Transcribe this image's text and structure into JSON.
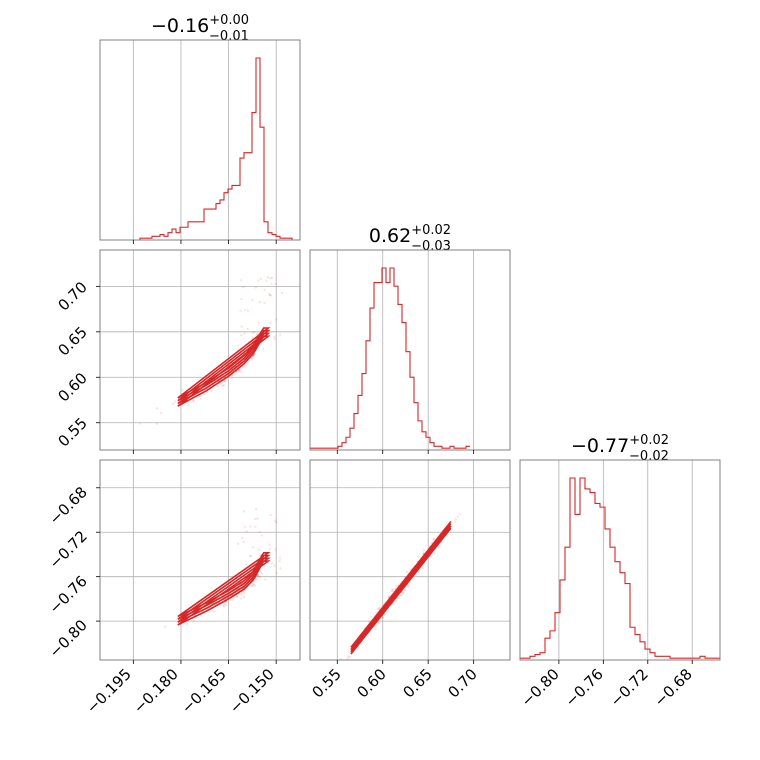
{
  "chart_data": {
    "type": "corner",
    "color": "#d62728",
    "parameters": [
      {
        "title": {
          "median": "−0.16",
          "plus": "+0.00",
          "minus": "−0.01"
        },
        "range": [
          -0.2055,
          -0.1425
        ],
        "ticks": [
          -0.195,
          -0.18,
          -0.165,
          -0.15
        ],
        "tick_labels": [
          "−0.195",
          "−0.180",
          "−0.165",
          "−0.150"
        ]
      },
      {
        "title": {
          "median": "0.62",
          "plus": "+0.02",
          "minus": "−0.03"
        },
        "range": [
          0.52,
          0.74
        ],
        "ticks": [
          0.55,
          0.6,
          0.65,
          0.7
        ],
        "tick_labels": [
          "0.55",
          "0.60",
          "0.65",
          "0.70"
        ]
      },
      {
        "title": {
          "median": "−0.77",
          "plus": "+0.02",
          "minus": "−0.02"
        },
        "range": [
          -0.835,
          -0.655
        ],
        "ticks": [
          -0.8,
          -0.76,
          -0.72,
          -0.68
        ],
        "tick_labels": [
          "−0.80",
          "−0.76",
          "−0.72",
          "−0.68"
        ]
      }
    ],
    "histograms": [
      {
        "param": 0,
        "bin_start": -0.2055,
        "bin_width": 0.00126,
        "counts": [
          0,
          0,
          0,
          0,
          0,
          0,
          0,
          0,
          0,
          0,
          1,
          1,
          1,
          2,
          2,
          3,
          2,
          4,
          6,
          4,
          7,
          7,
          10,
          10,
          10,
          10,
          17,
          17,
          17,
          20,
          22,
          26,
          28,
          30,
          30,
          45,
          48,
          48,
          70,
          100,
          62,
          10,
          4,
          3,
          2,
          1,
          1,
          1,
          0,
          0
        ]
      },
      {
        "param": 1,
        "bin_start": 0.52,
        "bin_width": 0.0044,
        "counts": [
          1,
          1,
          1,
          1,
          1,
          1,
          1,
          2,
          4,
          7,
          12,
          20,
          30,
          42,
          60,
          78,
          92,
          92,
          100,
          92,
          100,
          90,
          80,
          70,
          54,
          40,
          26,
          16,
          10,
          7,
          4,
          2,
          2,
          1,
          1,
          2,
          1,
          1,
          1,
          2
        ]
      },
      {
        "param": 2,
        "bin_start": -0.835,
        "bin_width": 0.0045,
        "counts": [
          1,
          1,
          2,
          3,
          4,
          12,
          16,
          26,
          44,
          62,
          100,
          80,
          100,
          94,
          92,
          86,
          84,
          72,
          62,
          54,
          48,
          42,
          18,
          14,
          10,
          6,
          4,
          2,
          2,
          2,
          1,
          1,
          1,
          1,
          1,
          1,
          2,
          1,
          1,
          1
        ]
      }
    ],
    "relation": {
      "x_knots": [
        -0.2,
        -0.19,
        -0.18,
        -0.172,
        -0.165,
        -0.16,
        -0.157,
        -0.154
      ],
      "y_knots": [
        0.53,
        0.555,
        0.575,
        0.59,
        0.606,
        0.62,
        0.632,
        0.65
      ],
      "z_knots": [
        -0.822,
        -0.812,
        -0.798,
        -0.787,
        -0.776,
        -0.767,
        -0.758,
        -0.742
      ]
    },
    "grid": true,
    "xlabels": [
      "",
      "",
      ""
    ],
    "ylabels": [
      "",
      "",
      ""
    ]
  }
}
